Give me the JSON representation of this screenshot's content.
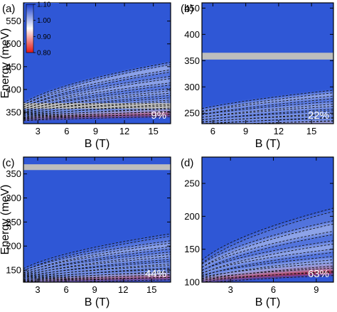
{
  "figure": {
    "colorbar": {
      "ticks": [
        "1.10",
        "1.00",
        "0.90",
        "0.80"
      ],
      "colors": {
        "high": "#1a3fd0",
        "mid": "#ffffff",
        "low": "#e01515"
      }
    },
    "colors": {
      "background": "#2f57d6",
      "grey_band": "#bdbdbd",
      "dashed_line": "#111111"
    }
  },
  "chart_data": [
    {
      "type": "heatmap",
      "panel_label": "(a)",
      "concentration_label": "9%",
      "xlabel": "B (T)",
      "ylabel": "Energy (meV)",
      "xlim": [
        1.5,
        16.8
      ],
      "ylim": [
        325,
        590
      ],
      "xticks": [
        3,
        6,
        9,
        12,
        15
      ],
      "xtick_labels": [
        "3",
        "6",
        "9",
        "12",
        "15"
      ],
      "yticks": [
        350,
        400,
        450,
        500,
        550
      ],
      "ytick_labels": [
        "350",
        "400",
        "450",
        "500",
        "550"
      ],
      "grey_band": [
        358,
        370
      ],
      "fan_origin_energy": 330,
      "fan_slopes_meV_per_T": [
        3.2,
        4.5,
        6.0,
        7.8,
        9.8,
        12.0,
        14.5,
        17.0,
        20.0,
        23.5,
        27.0,
        31.0
      ]
    },
    {
      "type": "heatmap",
      "panel_label": "(b)",
      "concentration_label": "22%",
      "xlabel": "B (T)",
      "ylabel": "",
      "xlim": [
        5,
        17
      ],
      "ylim": [
        230,
        460
      ],
      "xticks": [
        6,
        9,
        12,
        15
      ],
      "xtick_labels": [
        "6",
        "9",
        "12",
        "15"
      ],
      "yticks": [
        250,
        300,
        350,
        400,
        450
      ],
      "ytick_labels": [
        "250",
        "300",
        "350",
        "400",
        "450"
      ],
      "grey_band": [
        352,
        365
      ],
      "fan_origin_energy": 215,
      "fan_slopes_meV_per_T": [
        2.0,
        3.0,
        4.2,
        5.6,
        7.2,
        9.0,
        11.0,
        13.3,
        15.8,
        18.5
      ]
    },
    {
      "type": "heatmap",
      "panel_label": "(c)",
      "concentration_label": "44%",
      "xlabel": "B (T)",
      "ylabel": "Energy (meV)",
      "xlim": [
        1.5,
        17
      ],
      "ylim": [
        125,
        385
      ],
      "xticks": [
        3,
        6,
        9,
        12,
        15
      ],
      "xtick_labels": [
        "3",
        "6",
        "9",
        "12",
        "15"
      ],
      "yticks": [
        150,
        200,
        250,
        300,
        350
      ],
      "ytick_labels": [
        "150",
        "200",
        "250",
        "300",
        "350"
      ],
      "grey_band": [
        358,
        370
      ],
      "fan_origin_energy": 120,
      "fan_slopes_meV_per_T": [
        3.0,
        4.2,
        5.6,
        7.2,
        9.0,
        11.0,
        13.3,
        15.8,
        18.5,
        21.5,
        25.0
      ]
    },
    {
      "type": "heatmap",
      "panel_label": "(d)",
      "concentration_label": "63%",
      "xlabel": "B (T)",
      "ylabel": "",
      "xlim": [
        1,
        10.2
      ],
      "ylim": [
        100,
        290
      ],
      "xticks": [
        3,
        6,
        9
      ],
      "xtick_labels": [
        "3",
        "6",
        "9"
      ],
      "yticks": [
        100,
        150,
        200,
        250
      ],
      "ytick_labels": [
        "100",
        "150",
        "200",
        "250"
      ],
      "grey_band": null,
      "fan_origin_energy": 95,
      "fan_slopes_meV_per_T": [
        5.5,
        7.5,
        10.0,
        13.0,
        16.5,
        20.5,
        25.0,
        30.0,
        36.0
      ]
    }
  ]
}
